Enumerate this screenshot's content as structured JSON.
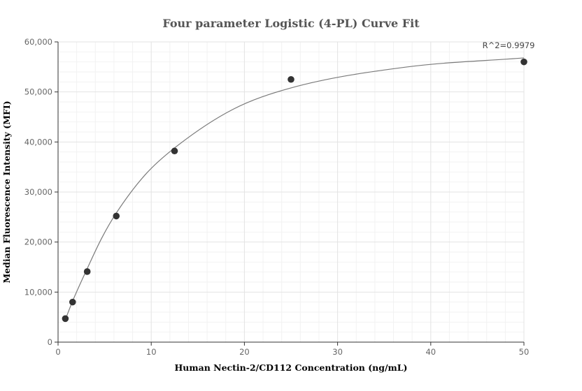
{
  "chart_data": {
    "type": "scatter",
    "title": "Four parameter Logistic (4-PL) Curve Fit",
    "xlabel": "Human Nectin-2/CD112 Concentration (ng/mL)",
    "ylabel": "Median Fluorescence Intensity (MFI)",
    "xlim": [
      0,
      50
    ],
    "ylim": [
      0,
      60000
    ],
    "x_ticks": [
      0,
      10,
      20,
      30,
      40,
      50
    ],
    "y_ticks": [
      0,
      10000,
      20000,
      30000,
      40000,
      50000,
      60000
    ],
    "x_tick_labels": [
      "0",
      "10",
      "20",
      "30",
      "40",
      "50"
    ],
    "y_tick_labels": [
      "0",
      "10,000",
      "20,000",
      "30,000",
      "40,000",
      "50,000",
      "60,000"
    ],
    "grid": true,
    "series": [
      {
        "type": "scatter",
        "x": [
          0.78,
          1.56,
          3.13,
          6.25,
          12.5,
          25,
          50
        ],
        "y": [
          4700,
          8000,
          14100,
          25200,
          38200,
          52500,
          56000
        ]
      },
      {
        "type": "line",
        "x": [
          0.78,
          1.56,
          3.13,
          4.69,
          6.25,
          9.375,
          12.5,
          18.75,
          25,
          37.5,
          50
        ],
        "y": [
          4500,
          8200,
          14700,
          20800,
          25800,
          33500,
          38800,
          46500,
          50800,
          55000,
          56800
        ]
      }
    ],
    "annotation": {
      "text": "R^2=0.9979",
      "x": 50,
      "y": 56800
    }
  }
}
